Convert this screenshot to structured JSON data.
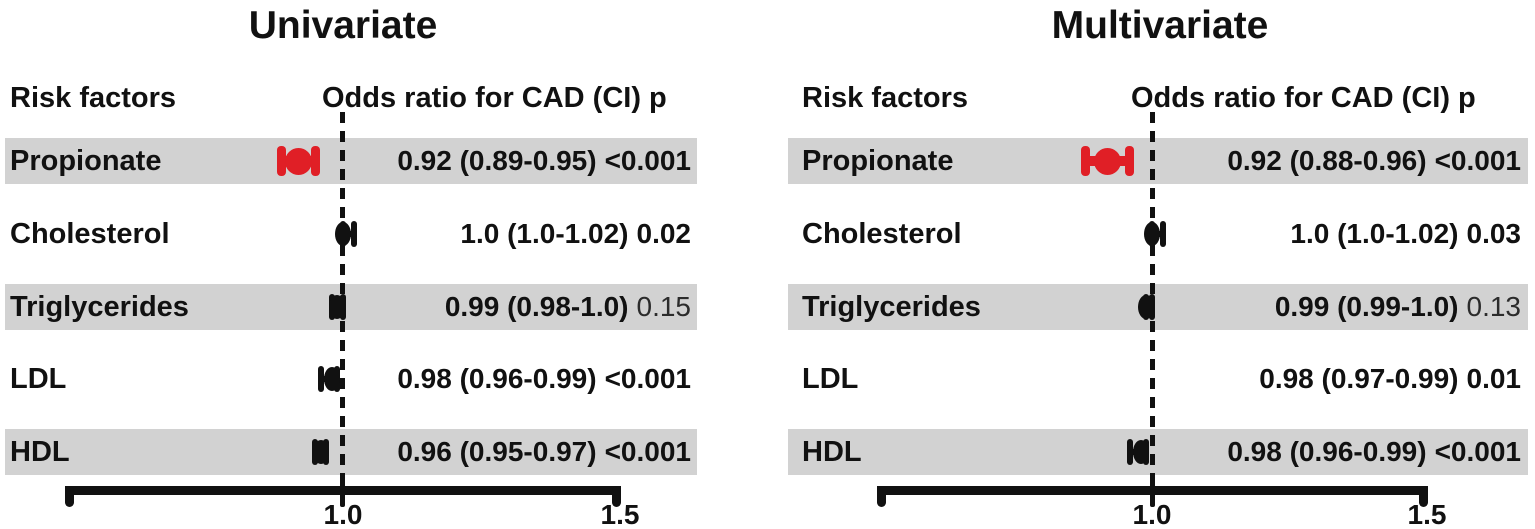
{
  "figure": {
    "colors": {
      "ink": "#111111",
      "accent_red": "#e01f26",
      "band_gray": "#d2d2d2",
      "background": "#ffffff"
    },
    "axis": {
      "ticks": [
        "1.0",
        "1.5"
      ],
      "min": 0.5,
      "max": 1.5,
      "reference": 1.0
    }
  },
  "panels": [
    {
      "title": "Univariate",
      "col_risk": "Risk factors",
      "col_or": "Odds ratio for CAD (CI) p",
      "rows": [
        {
          "label": "Propionate",
          "or": 0.92,
          "ci_low": 0.89,
          "ci_high": 0.95,
          "or_ci_text": "0.92 (0.89-0.95)",
          "p_text": "<0.001",
          "p_bold": true,
          "marker": true,
          "marker_color": "red",
          "shaded": true
        },
        {
          "label": "Cholesterol",
          "or": 1.0,
          "ci_low": 1.0,
          "ci_high": 1.02,
          "or_ci_text": "1.0 (1.0-1.02)",
          "p_text": "0.02",
          "p_bold": true,
          "marker": true,
          "marker_color": "black",
          "shaded": false
        },
        {
          "label": "Triglycerides",
          "or": 0.99,
          "ci_low": 0.98,
          "ci_high": 1.0,
          "or_ci_text": "0.99 (0.98-1.0)",
          "p_text": "0.15",
          "p_bold": false,
          "marker": true,
          "marker_color": "black",
          "shaded": true
        },
        {
          "label": "LDL",
          "or": 0.98,
          "ci_low": 0.96,
          "ci_high": 0.99,
          "or_ci_text": "0.98 (0.96-0.99)",
          "p_text": "<0.001",
          "p_bold": true,
          "marker": true,
          "marker_color": "black",
          "shaded": false
        },
        {
          "label": "HDL",
          "or": 0.96,
          "ci_low": 0.95,
          "ci_high": 0.97,
          "or_ci_text": "0.96 (0.95-0.97)",
          "p_text": "<0.001",
          "p_bold": true,
          "marker": true,
          "marker_color": "black",
          "shaded": true
        }
      ]
    },
    {
      "title": "Multivariate",
      "col_risk": "Risk factors",
      "col_or": "Odds ratio for CAD (CI) p",
      "rows": [
        {
          "label": "Propionate",
          "or": 0.92,
          "ci_low": 0.88,
          "ci_high": 0.96,
          "or_ci_text": "0.92 (0.88-0.96)",
          "p_text": "<0.001",
          "p_bold": true,
          "marker": true,
          "marker_color": "red",
          "shaded": true
        },
        {
          "label": "Cholesterol",
          "or": 1.0,
          "ci_low": 1.0,
          "ci_high": 1.02,
          "or_ci_text": "1.0 (1.0-1.02)",
          "p_text": "0.03",
          "p_bold": true,
          "marker": true,
          "marker_color": "black",
          "shaded": false
        },
        {
          "label": "Triglycerides",
          "or": 0.99,
          "ci_low": 0.99,
          "ci_high": 1.0,
          "or_ci_text": "0.99 (0.99-1.0)",
          "p_text": "0.13",
          "p_bold": false,
          "marker": true,
          "marker_color": "black",
          "shaded": true
        },
        {
          "label": "LDL",
          "or": 0.98,
          "ci_low": 0.97,
          "ci_high": 0.99,
          "or_ci_text": "0.98 (0.97-0.99)",
          "p_text": "0.01",
          "p_bold": true,
          "marker": false,
          "marker_color": "black",
          "shaded": false
        },
        {
          "label": "HDL",
          "or": 0.98,
          "ci_low": 0.96,
          "ci_high": 0.99,
          "or_ci_text": "0.98 (0.96-0.99)",
          "p_text": "<0.001",
          "p_bold": true,
          "marker": true,
          "marker_color": "black",
          "shaded": true
        }
      ]
    }
  ],
  "chart_data": [
    {
      "type": "scatter",
      "subtype": "forest-plot",
      "title": "Univariate",
      "xlabel": "Odds ratio for CAD (CI) p",
      "xlim": [
        0.5,
        1.5
      ],
      "x_ticks": [
        1.0,
        1.5
      ],
      "reference_line": 1.0,
      "grid": false,
      "categories": [
        "Propionate",
        "Cholesterol",
        "Triglycerides",
        "LDL",
        "HDL"
      ],
      "odds_ratios": [
        0.92,
        1.0,
        0.99,
        0.98,
        0.96
      ],
      "ci_low": [
        0.89,
        1.0,
        0.98,
        0.96,
        0.95
      ],
      "ci_high": [
        0.95,
        1.02,
        1.0,
        0.99,
        0.97
      ],
      "p_values": [
        "<0.001",
        "0.02",
        "0.15",
        "<0.001",
        "<0.001"
      ],
      "highlight_series": "Propionate",
      "highlight_color": "#e01f26"
    },
    {
      "type": "scatter",
      "subtype": "forest-plot",
      "title": "Multivariate",
      "xlabel": "Odds ratio for CAD (CI) p",
      "xlim": [
        0.5,
        1.5
      ],
      "x_ticks": [
        1.0,
        1.5
      ],
      "reference_line": 1.0,
      "grid": false,
      "categories": [
        "Propionate",
        "Cholesterol",
        "Triglycerides",
        "LDL",
        "HDL"
      ],
      "odds_ratios": [
        0.92,
        1.0,
        0.99,
        0.98,
        0.98
      ],
      "ci_low": [
        0.88,
        1.0,
        0.99,
        0.97,
        0.96
      ],
      "ci_high": [
        0.96,
        1.02,
        1.0,
        0.99,
        0.99
      ],
      "p_values": [
        "<0.001",
        "0.03",
        "0.13",
        "0.01",
        "<0.001"
      ],
      "plotted_markers": [
        true,
        true,
        true,
        false,
        true
      ],
      "highlight_series": "Propionate",
      "highlight_color": "#e01f26"
    }
  ]
}
